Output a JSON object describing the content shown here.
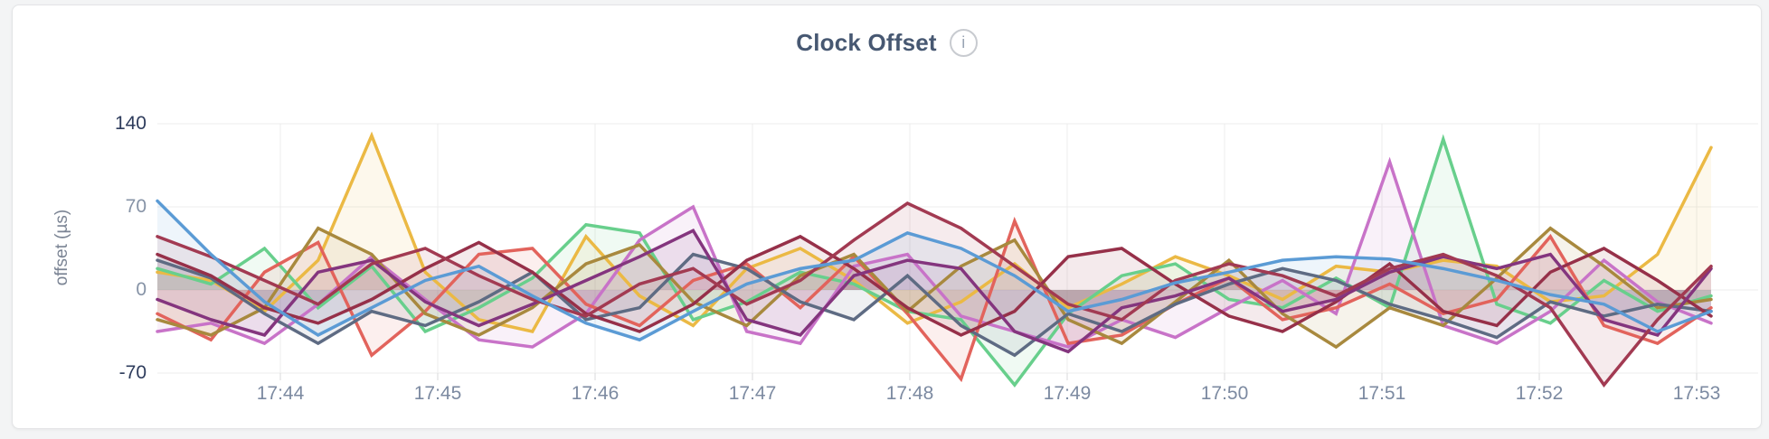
{
  "page": {
    "background": "#f3f4f5"
  },
  "card": {
    "title": "Clock Offset",
    "info_glyph": "i"
  },
  "colors": {
    "title": "#475872",
    "gridline": "#ececec",
    "tick_mark": "#d9dadb",
    "x_tick_label": "#7c8aa1",
    "y_tick_label_inner": "#8693a6",
    "y_tick_label_outer": "#2e3c5c",
    "axis_label": "#7b8494"
  },
  "chart_data": {
    "type": "line",
    "title": "Clock Offset",
    "xlabel": "",
    "ylabel": "offset (µs)",
    "x_ticks": [
      "17:44",
      "17:45",
      "17:46",
      "17:47",
      "17:48",
      "17:49",
      "17:50",
      "17:51",
      "17:52",
      "17:53"
    ],
    "y_ticks": [
      140,
      70,
      0,
      -70
    ],
    "ylim": [
      -70,
      140
    ],
    "x_start_offset_min": -0.78,
    "x_step_min": 0.34,
    "grid": true,
    "legend_position": "none",
    "fill_opacity": 0.1,
    "line_width": 3.5,
    "series": [
      {
        "name": "series-gold",
        "color": "#EBB944",
        "values": [
          15,
          8,
          -18,
          25,
          130,
          15,
          -25,
          -35,
          45,
          -5,
          -30,
          18,
          35,
          8,
          -28,
          -10,
          22,
          -15,
          5,
          28,
          12,
          -8,
          20,
          15,
          25,
          20,
          -10,
          -5,
          30,
          120
        ]
      },
      {
        "name": "series-green",
        "color": "#68CF8C",
        "values": [
          18,
          5,
          35,
          -15,
          20,
          -35,
          -15,
          10,
          55,
          48,
          -25,
          -10,
          15,
          5,
          -18,
          -25,
          -80,
          -20,
          12,
          22,
          -8,
          -15,
          10,
          -15,
          127,
          -12,
          -28,
          8,
          -18,
          -5
        ]
      },
      {
        "name": "series-orchid",
        "color": "#C873C8",
        "values": [
          -35,
          -28,
          -45,
          -12,
          28,
          -8,
          -42,
          -48,
          -20,
          42,
          70,
          -35,
          -45,
          20,
          30,
          -22,
          -35,
          -48,
          -25,
          -40,
          -15,
          8,
          -20,
          108,
          -30,
          -45,
          -18,
          25,
          -10,
          -28
        ]
      },
      {
        "name": "series-salmon",
        "color": "#E2635C",
        "values": [
          -20,
          -42,
          15,
          40,
          -55,
          -18,
          30,
          35,
          -12,
          -30,
          8,
          22,
          -15,
          28,
          -20,
          -75,
          58,
          -45,
          -38,
          -12,
          10,
          -25,
          -15,
          5,
          -20,
          -8,
          45,
          -30,
          -45,
          -15
        ]
      },
      {
        "name": "series-olive",
        "color": "#A8893E",
        "values": [
          -25,
          -38,
          -15,
          52,
          30,
          -20,
          -38,
          -15,
          22,
          38,
          -10,
          -30,
          12,
          30,
          -18,
          20,
          42,
          -25,
          -45,
          -10,
          25,
          -20,
          -48,
          -15,
          -30,
          10,
          52,
          20,
          -15,
          -8
        ]
      },
      {
        "name": "series-slate",
        "color": "#5E6B83",
        "values": [
          25,
          10,
          -20,
          -45,
          -18,
          -30,
          -10,
          15,
          -25,
          -15,
          30,
          18,
          -10,
          -25,
          12,
          -30,
          -55,
          -20,
          -35,
          -12,
          5,
          18,
          8,
          -12,
          -25,
          -40,
          -10,
          -22,
          -12,
          -18
        ]
      },
      {
        "name": "series-crimson",
        "color": "#963049",
        "values": [
          30,
          12,
          -15,
          -28,
          -8,
          18,
          40,
          15,
          -20,
          -35,
          -12,
          25,
          45,
          18,
          -15,
          -38,
          -18,
          28,
          35,
          5,
          -22,
          -35,
          -10,
          22,
          -18,
          -30,
          15,
          35,
          8,
          -22
        ]
      },
      {
        "name": "series-plum",
        "color": "#84357E",
        "values": [
          -8,
          -25,
          -38,
          15,
          25,
          -10,
          -30,
          -12,
          8,
          28,
          50,
          -25,
          -38,
          12,
          25,
          18,
          -35,
          -52,
          -15,
          -5,
          10,
          -18,
          -8,
          15,
          28,
          18,
          30,
          -25,
          -38,
          18
        ]
      },
      {
        "name": "series-wine",
        "color": "#A23A52",
        "values": [
          45,
          28,
          8,
          -12,
          22,
          35,
          12,
          -8,
          -22,
          5,
          18,
          -12,
          8,
          42,
          73,
          52,
          20,
          -12,
          -25,
          8,
          22,
          12,
          -5,
          18,
          30,
          12,
          -15,
          -80,
          -25,
          20
        ]
      },
      {
        "name": "series-blue",
        "color": "#5B9BD5",
        "values": [
          75,
          30,
          -10,
          -38,
          -15,
          8,
          20,
          -5,
          -28,
          -42,
          -18,
          5,
          18,
          25,
          48,
          35,
          12,
          -18,
          -8,
          6,
          15,
          25,
          28,
          26,
          18,
          8,
          -4,
          -12,
          -35,
          -18
        ]
      }
    ]
  }
}
